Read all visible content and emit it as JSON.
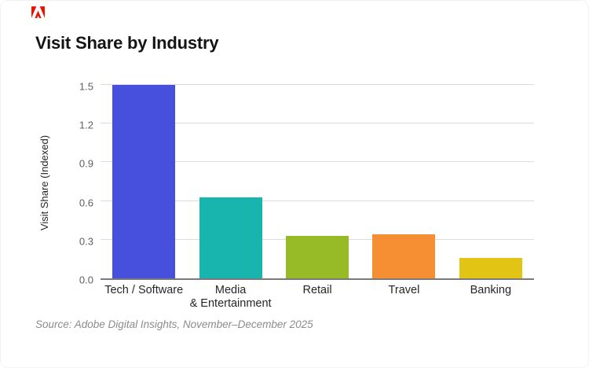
{
  "logo": {
    "name": "Adobe",
    "color": "#EB1000"
  },
  "chart_data": {
    "type": "bar",
    "title": "Visit Share by Industry",
    "ylabel": "Visit Share (Indexed)",
    "xlabel": "",
    "categories": [
      "Tech / Software",
      "Media\n& Entertainment",
      "Retail",
      "Travel",
      "Banking"
    ],
    "values": [
      1.5,
      0.63,
      0.33,
      0.34,
      0.16
    ],
    "bar_colors": [
      "#4650DC",
      "#17B5AE",
      "#96BB27",
      "#F68F33",
      "#E2C414"
    ],
    "ylim": [
      0,
      1.5
    ],
    "yticks": [
      0,
      0.3,
      0.6,
      0.9,
      1.2,
      1.5
    ],
    "ytick_labels": [
      "0.0",
      "0.3",
      "0.6",
      "0.9",
      "1.2",
      "1.5"
    ],
    "grid": true,
    "legend": false
  },
  "source": "Source: Adobe Digital Insights, November–December 2025",
  "colors": {
    "background": "#ffffff",
    "grid": "#dcdcdc",
    "axis": "#7b7b7b",
    "tick_text": "#5f5f5f",
    "label_text": "#262626",
    "title_text": "#141414",
    "source_text": "#8c8c8c"
  }
}
